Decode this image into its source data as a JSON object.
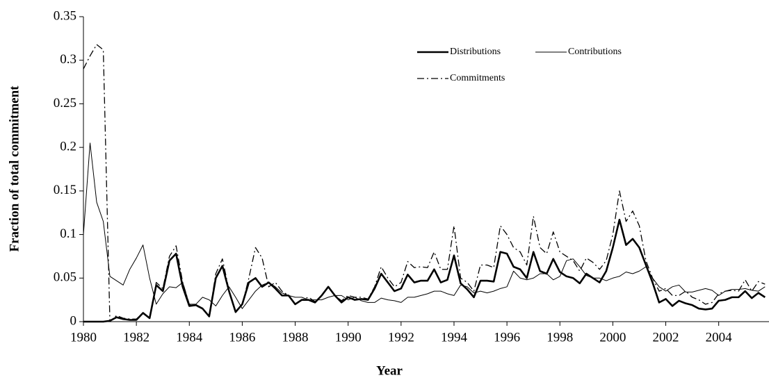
{
  "chart_data": {
    "type": "line",
    "x_label": "Year",
    "y_label": "Fraction of total commitment",
    "x": [
      1980,
      1980.25,
      1980.5,
      1980.75,
      1981,
      1981.25,
      1981.5,
      1981.75,
      1982,
      1982.25,
      1982.5,
      1982.75,
      1983,
      1983.25,
      1983.5,
      1983.75,
      1984,
      1984.25,
      1984.5,
      1984.75,
      1985,
      1985.25,
      1985.5,
      1985.75,
      1986,
      1986.25,
      1986.5,
      1986.75,
      1987,
      1987.25,
      1987.5,
      1987.75,
      1988,
      1988.25,
      1988.5,
      1988.75,
      1989,
      1989.25,
      1989.5,
      1989.75,
      1990,
      1990.25,
      1990.5,
      1990.75,
      1991,
      1991.25,
      1991.5,
      1991.75,
      1992,
      1992.25,
      1992.5,
      1992.75,
      1993,
      1993.25,
      1993.5,
      1993.75,
      1994,
      1994.25,
      1994.5,
      1994.75,
      1995,
      1995.25,
      1995.5,
      1995.75,
      1996,
      1996.25,
      1996.5,
      1996.75,
      1997,
      1997.25,
      1997.5,
      1997.75,
      1998,
      1998.25,
      1998.5,
      1998.75,
      1999,
      1999.25,
      1999.5,
      1999.75,
      2000,
      2000.25,
      2000.5,
      2000.75,
      2001,
      2001.25,
      2001.5,
      2001.75,
      2002,
      2002.25,
      2002.5,
      2002.75,
      2003,
      2003.25,
      2003.5,
      2003.75,
      2004,
      2004.25,
      2004.5,
      2004.75,
      2005,
      2005.25,
      2005.5,
      2005.75
    ],
    "series": [
      {
        "name": "Distributions",
        "color": "#000000",
        "line_width": 2.6,
        "line_style": "solid",
        "values": [
          0,
          0,
          0,
          0,
          0.001,
          0.005,
          0.003,
          0.002,
          0.002,
          0.01,
          0.004,
          0.042,
          0.035,
          0.07,
          0.078,
          0.04,
          0.018,
          0.019,
          0.015,
          0.006,
          0.05,
          0.064,
          0.035,
          0.011,
          0.02,
          0.045,
          0.05,
          0.04,
          0.045,
          0.038,
          0.03,
          0.03,
          0.02,
          0.025,
          0.025,
          0.022,
          0.03,
          0.04,
          0.03,
          0.022,
          0.028,
          0.025,
          0.026,
          0.025,
          0.038,
          0.055,
          0.045,
          0.035,
          0.038,
          0.054,
          0.045,
          0.047,
          0.047,
          0.06,
          0.045,
          0.048,
          0.076,
          0.044,
          0.037,
          0.028,
          0.047,
          0.047,
          0.046,
          0.08,
          0.078,
          0.063,
          0.06,
          0.05,
          0.08,
          0.058,
          0.055,
          0.072,
          0.057,
          0.052,
          0.05,
          0.044,
          0.055,
          0.05,
          0.045,
          0.058,
          0.085,
          0.117,
          0.088,
          0.095,
          0.085,
          0.065,
          0.045,
          0.022,
          0.026,
          0.018,
          0.024,
          0.021,
          0.019,
          0.015,
          0.014,
          0.015,
          0.024,
          0.025,
          0.028,
          0.028,
          0.035,
          0.027,
          0.033,
          0.028
        ]
      },
      {
        "name": "Contributions",
        "color": "#000000",
        "line_width": 1,
        "line_style": "solid",
        "values": [
          0.1,
          0.205,
          0.137,
          0.115,
          0.052,
          0.047,
          0.042,
          0.06,
          0.073,
          0.088,
          0.05,
          0.02,
          0.032,
          0.04,
          0.039,
          0.045,
          0.02,
          0.02,
          0.028,
          0.025,
          0.018,
          0.03,
          0.04,
          0.028,
          0.015,
          0.025,
          0.035,
          0.042,
          0.045,
          0.04,
          0.033,
          0.03,
          0.028,
          0.028,
          0.025,
          0.025,
          0.025,
          0.028,
          0.03,
          0.03,
          0.025,
          0.028,
          0.024,
          0.022,
          0.022,
          0.027,
          0.025,
          0.024,
          0.022,
          0.028,
          0.028,
          0.03,
          0.032,
          0.035,
          0.035,
          0.032,
          0.03,
          0.042,
          0.04,
          0.033,
          0.035,
          0.033,
          0.035,
          0.038,
          0.04,
          0.058,
          0.05,
          0.048,
          0.05,
          0.055,
          0.055,
          0.048,
          0.052,
          0.07,
          0.072,
          0.063,
          0.053,
          0.05,
          0.05,
          0.047,
          0.05,
          0.052,
          0.057,
          0.055,
          0.058,
          0.063,
          0.05,
          0.04,
          0.035,
          0.04,
          0.042,
          0.034,
          0.034,
          0.036,
          0.038,
          0.036,
          0.03,
          0.035,
          0.037,
          0.037,
          0.038,
          0.036,
          0.035,
          0.04
        ]
      },
      {
        "name": "Commitments",
        "color": "#000000",
        "line_width": 1.3,
        "line_style": "dashdot",
        "values": [
          0.29,
          0.305,
          0.318,
          0.312,
          0,
          0.007,
          0.004,
          0.003,
          0.003,
          0.01,
          0.004,
          0.045,
          0.038,
          0.075,
          0.087,
          0.045,
          0.02,
          0.018,
          0.015,
          0.007,
          0.055,
          0.072,
          0.036,
          0.012,
          0.02,
          0.05,
          0.085,
          0.073,
          0.04,
          0.045,
          0.035,
          0.03,
          0.02,
          0.025,
          0.028,
          0.023,
          0.03,
          0.04,
          0.03,
          0.024,
          0.03,
          0.028,
          0.028,
          0.026,
          0.04,
          0.063,
          0.05,
          0.04,
          0.045,
          0.069,
          0.062,
          0.063,
          0.062,
          0.08,
          0.06,
          0.06,
          0.11,
          0.05,
          0.045,
          0.035,
          0.065,
          0.065,
          0.062,
          0.11,
          0.1,
          0.085,
          0.08,
          0.065,
          0.121,
          0.085,
          0.078,
          0.103,
          0.08,
          0.075,
          0.07,
          0.058,
          0.073,
          0.068,
          0.06,
          0.07,
          0.1,
          0.15,
          0.115,
          0.127,
          0.11,
          0.07,
          0.05,
          0.035,
          0.038,
          0.03,
          0.03,
          0.035,
          0.028,
          0.025,
          0.02,
          0.022,
          0.032,
          0.035,
          0.036,
          0.035,
          0.048,
          0.035,
          0.046,
          0.043
        ]
      }
    ],
    "xlim": [
      1980,
      2005.9
    ],
    "xticks": [
      1980,
      1982,
      1984,
      1986,
      1988,
      1990,
      1992,
      1994,
      1996,
      1998,
      2000,
      2002,
      2004
    ],
    "ylim": [
      0,
      0.35
    ],
    "yticks": [
      0,
      0.05,
      0.1,
      0.15,
      0.2,
      0.25,
      0.3,
      0.35
    ]
  }
}
